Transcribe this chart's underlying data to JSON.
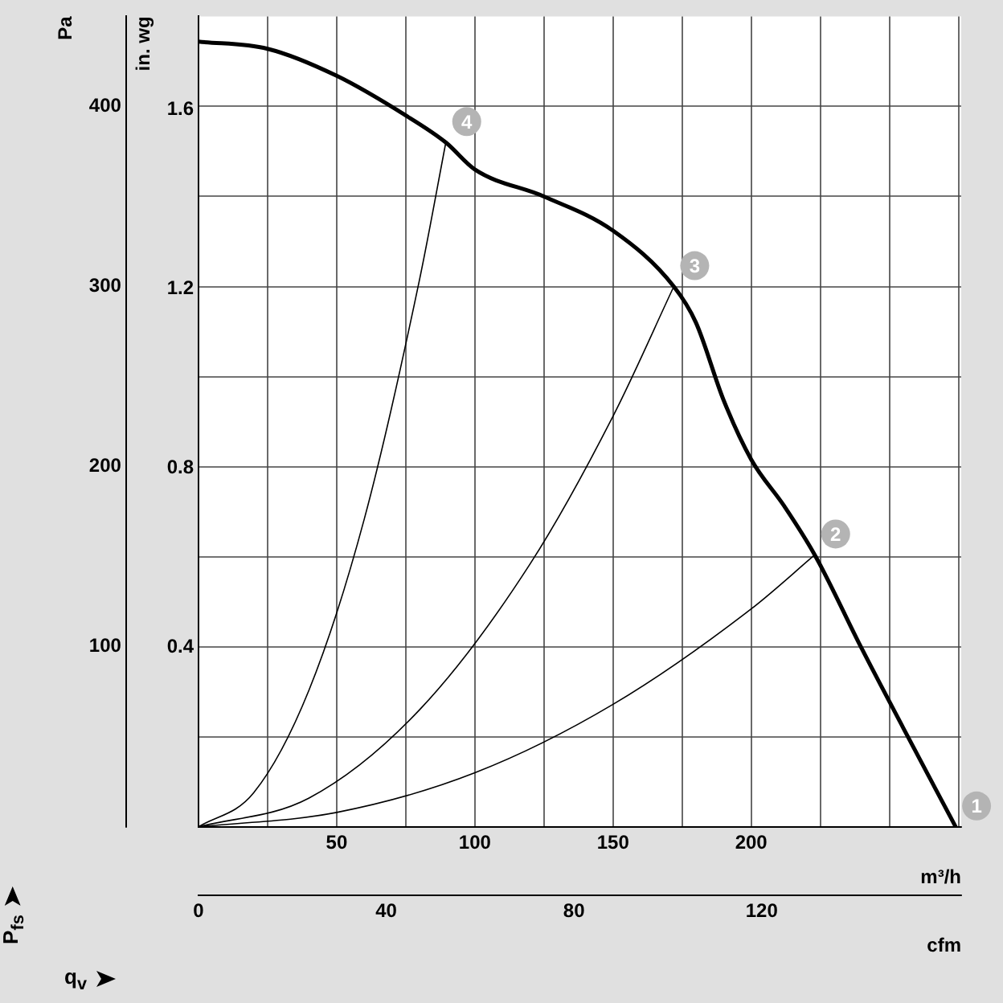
{
  "chart_data": {
    "type": "line",
    "xlabel": "m³/h",
    "x2label": "cfm",
    "ylabel": "Pa",
    "y2label": "in. wg",
    "xlim": [
      0,
      276
    ],
    "xticks": [
      {
        "value": 0,
        "label": null
      },
      {
        "value": 25,
        "label": null
      },
      50,
      {
        "value": 75,
        "label": null
      },
      100,
      {
        "value": 125,
        "label": null
      },
      150,
      {
        "value": 175,
        "label": null
      },
      200,
      {
        "value": 225,
        "label": null
      },
      {
        "value": 250,
        "label": null
      },
      {
        "value": 275,
        "label": null
      }
    ],
    "x2lim": [
      0,
      162.5
    ],
    "x2ticks": [
      0,
      40,
      80,
      120
    ],
    "ylim": [
      0,
      450
    ],
    "yticks": [
      {
        "value": 0,
        "label": null
      },
      {
        "value": 50,
        "label": null
      },
      100,
      {
        "value": 150,
        "label": null
      },
      200,
      {
        "value": 250,
        "label": null
      },
      300,
      {
        "value": 350,
        "label": null
      },
      400
    ],
    "y2lim": [
      0,
      1.807
    ],
    "y2ticks": [
      0.4,
      0.8,
      1.2,
      1.6
    ],
    "series": [
      {
        "color": "#000000",
        "x": [
          0,
          25,
          50,
          75,
          89.5,
          100,
          125,
          150,
          172,
          180,
          190,
          200,
          212,
          223,
          240,
          255,
          274
        ],
        "values": [
          436,
          432,
          417,
          395,
          380,
          365,
          350,
          331,
          300,
          280,
          237,
          204,
          178,
          151,
          99,
          55,
          0
        ]
      },
      {
        "color": "#000000",
        "x": [
          0,
          20,
          40,
          60,
          80,
          89.5
        ],
        "values": [
          0,
          19,
          76,
          171,
          304,
          380
        ]
      },
      {
        "color": "#000000",
        "x": [
          0,
          40,
          80,
          120,
          150,
          172
        ],
        "values": [
          0,
          16,
          65,
          146,
          228,
          300
        ]
      },
      {
        "color": "#000000",
        "x": [
          0,
          50,
          100,
          150,
          200,
          223
        ],
        "values": [
          0,
          8,
          30,
          68,
          121,
          151
        ]
      }
    ],
    "marker": "none",
    "grid": true,
    "legend": false,
    "annotations": [
      {
        "text": "1",
        "x": 274,
        "y": 0
      },
      {
        "text": "2",
        "x": 223,
        "y": 151
      },
      {
        "text": "3",
        "x": 172,
        "y": 300
      },
      {
        "text": "4",
        "x": 89.5,
        "y": 380
      },
      "q$_{v}$",
      "P$_{fs}$"
    ]
  }
}
